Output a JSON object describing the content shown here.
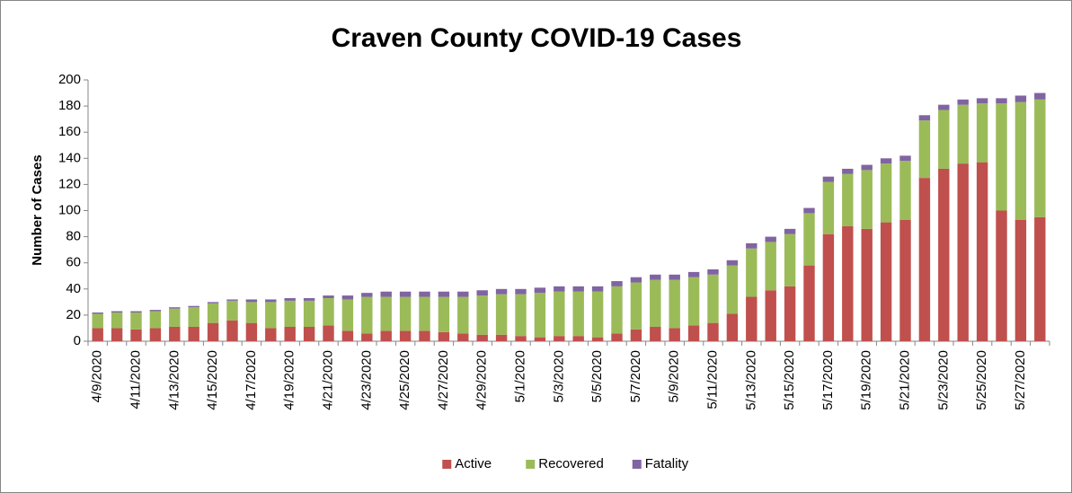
{
  "chart_data": {
    "type": "bar",
    "stacked": true,
    "title": "Craven County COVID-19 Cases",
    "y_label": "Number of Cases",
    "categories": [
      "4/9/2020",
      null,
      "4/11/2020",
      null,
      "4/13/2020",
      null,
      "4/15/2020",
      null,
      "4/17/2020",
      null,
      "4/19/2020",
      null,
      "4/21/2020",
      null,
      "4/23/2020",
      null,
      "4/25/2020",
      null,
      "4/27/2020",
      null,
      "4/29/2020",
      null,
      "5/1/2020",
      null,
      "5/3/2020",
      null,
      "5/5/2020",
      null,
      "5/7/2020",
      null,
      "5/9/2020",
      null,
      "5/11/2020",
      null,
      "5/13/2020",
      null,
      "5/15/2020",
      null,
      "5/17/2020",
      null,
      "5/19/2020",
      null,
      "5/21/2020",
      null,
      "5/23/2020",
      null,
      "5/25/2020",
      null,
      "5/27/2020",
      null
    ],
    "series": [
      {
        "name": "Active",
        "color": "#c0504d",
        "values": [
          10,
          10,
          9,
          10,
          11,
          11,
          14,
          16,
          14,
          10,
          11,
          11,
          12,
          8,
          6,
          8,
          8,
          8,
          7,
          6,
          5,
          5,
          4,
          3,
          4,
          4,
          3,
          6,
          9,
          11,
          10,
          12,
          14,
          21,
          34,
          39,
          42,
          58,
          82,
          88,
          86,
          91,
          93,
          125,
          132,
          136,
          137,
          100,
          93,
          95
        ]
      },
      {
        "name": "Recovered",
        "color": "#9bbb59",
        "values": [
          11,
          12,
          13,
          13,
          14,
          15,
          15,
          15,
          16,
          20,
          20,
          20,
          21,
          24,
          28,
          26,
          26,
          26,
          27,
          28,
          30,
          31,
          32,
          34,
          34,
          34,
          35,
          36,
          36,
          36,
          37,
          37,
          37,
          37,
          37,
          37,
          40,
          40,
          40,
          40,
          45,
          45,
          45,
          44,
          45,
          45,
          45,
          82,
          90,
          90
        ]
      },
      {
        "name": "Fatality",
        "color": "#8064a2",
        "values": [
          1,
          1,
          1,
          1,
          1,
          1,
          1,
          1,
          2,
          2,
          2,
          2,
          2,
          3,
          3,
          4,
          4,
          4,
          4,
          4,
          4,
          4,
          4,
          4,
          4,
          4,
          4,
          4,
          4,
          4,
          4,
          4,
          4,
          4,
          4,
          4,
          4,
          4,
          4,
          4,
          4,
          4,
          4,
          4,
          4,
          4,
          4,
          4,
          5,
          5
        ]
      }
    ],
    "ylim": [
      0,
      200
    ],
    "yticks": [
      0,
      20,
      40,
      60,
      80,
      100,
      120,
      140,
      160,
      180,
      200
    ],
    "grid": false,
    "legend": "bottom"
  }
}
